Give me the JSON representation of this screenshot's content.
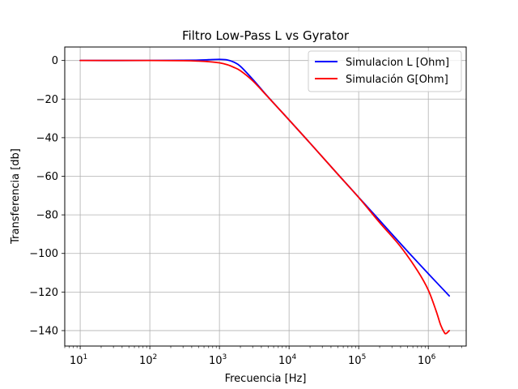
{
  "chart_data": {
    "type": "line",
    "title": "Filtro Low-Pass L vs Gyrator",
    "xlabel": "Frecuencia [Hz]",
    "ylabel": "Transferencia [db]",
    "x_scale": "log",
    "xlim": [
      6,
      3500000.0
    ],
    "ylim": [
      -148,
      7
    ],
    "x_ticks": [
      {
        "value": 10,
        "base": "10",
        "exp": "1"
      },
      {
        "value": 100,
        "base": "10",
        "exp": "2"
      },
      {
        "value": 1000,
        "base": "10",
        "exp": "3"
      },
      {
        "value": 10000,
        "base": "10",
        "exp": "4"
      },
      {
        "value": 100000,
        "base": "10",
        "exp": "5"
      },
      {
        "value": 1000000,
        "base": "10",
        "exp": "6"
      }
    ],
    "y_ticks": [
      0,
      -20,
      -40,
      -60,
      -80,
      -100,
      -120,
      -140
    ],
    "grid": true,
    "legend_position": "top-right",
    "series": [
      {
        "name": "Simulacion L [Ohm]",
        "color": "#0000ff",
        "x": [
          10,
          100,
          300,
          500,
          700,
          1000,
          1300,
          1600,
          2000,
          3000,
          5000,
          10000,
          20000,
          50000,
          100000,
          200000,
          500000,
          1000000,
          2000000
        ],
        "y": [
          0,
          0,
          0.1,
          0.2,
          0.4,
          0.6,
          0.3,
          -0.8,
          -3,
          -9.7,
          -18.9,
          -30.8,
          -42.8,
          -58.9,
          -70.9,
          -82.9,
          -98.8,
          -110.5,
          -122
        ]
      },
      {
        "name": "Simulación G[Ohm]",
        "color": "#ff0000",
        "x": [
          10,
          100,
          300,
          500,
          700,
          1000,
          1300,
          1600,
          2000,
          3000,
          5000,
          10000,
          20000,
          50000,
          100000,
          200000,
          400000,
          700000,
          1000000,
          1300000,
          1500000,
          1700000,
          1800000,
          2000000
        ],
        "y": [
          0,
          0,
          -0.1,
          -0.3,
          -0.6,
          -1.2,
          -2.2,
          -3.5,
          -5.3,
          -10.5,
          -19,
          -30.8,
          -42.8,
          -58.9,
          -71,
          -84,
          -96.5,
          -109,
          -119,
          -130,
          -137,
          -141,
          -141.5,
          -140
        ]
      }
    ]
  }
}
